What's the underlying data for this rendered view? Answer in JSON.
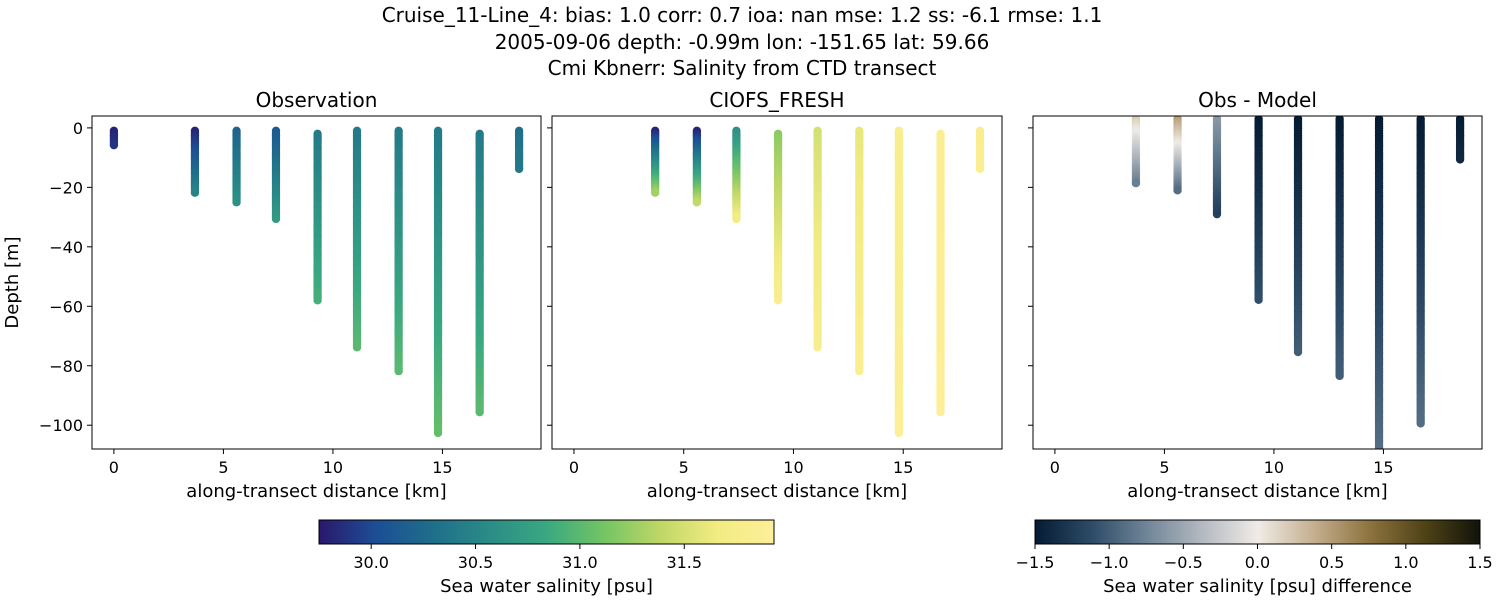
{
  "figure": {
    "title_lines": [
      "Cruise_11-Line_4: bias: 1.0  corr: 0.7  ioa: nan  mse: 1.2  ss: -6.1  rmse: 1.1",
      "2005-09-06 depth: -0.99m lon: -151.65 lat: 59.66",
      "Cmi Kbnerr: Salinity from CTD transect"
    ]
  },
  "chart_data": [
    {
      "type": "scatter",
      "title": "Observation",
      "xlabel": "along-transect distance [km]",
      "ylabel": "Depth [m]",
      "xlim": [
        -1,
        19.5
      ],
      "ylim": [
        -108,
        4
      ],
      "xticks": [
        0,
        5,
        10,
        15
      ],
      "yticks": [
        0,
        -20,
        -40,
        -60,
        -80,
        -100
      ],
      "colormap": "haline",
      "stations": [
        {
          "x": 0.0,
          "top": -1,
          "bottom": -6,
          "s_top": 29.8,
          "s_bottom": 29.9
        },
        {
          "x": 3.7,
          "top": -1,
          "bottom": -22,
          "s_top": 29.8,
          "s_bottom": 30.5
        },
        {
          "x": 5.6,
          "top": -1,
          "bottom": -25,
          "s_top": 30.2,
          "s_bottom": 30.6
        },
        {
          "x": 7.4,
          "top": -1,
          "bottom": -31,
          "s_top": 30.1,
          "s_bottom": 30.7
        },
        {
          "x": 9.3,
          "top": -2,
          "bottom": -58,
          "s_top": 30.4,
          "s_bottom": 30.9
        },
        {
          "x": 11.1,
          "top": -1,
          "bottom": -74,
          "s_top": 30.4,
          "s_bottom": 31.0
        },
        {
          "x": 13.0,
          "top": -1,
          "bottom": -82,
          "s_top": 30.4,
          "s_bottom": 31.0
        },
        {
          "x": 14.8,
          "top": -1,
          "bottom": -103,
          "s_top": 30.4,
          "s_bottom": 31.05
        },
        {
          "x": 16.7,
          "top": -2,
          "bottom": -96,
          "s_top": 30.4,
          "s_bottom": 31.0
        },
        {
          "x": 18.5,
          "top": -1,
          "bottom": -14,
          "s_top": 30.3,
          "s_bottom": 30.4
        }
      ]
    },
    {
      "type": "scatter",
      "title": "CIOFS_FRESH",
      "xlabel": "along-transect distance [km]",
      "ylabel": "",
      "xlim": [
        -1,
        19.5
      ],
      "ylim": [
        -108,
        4
      ],
      "xticks": [
        0,
        5,
        10,
        15
      ],
      "colormap": "haline",
      "stations": [
        {
          "x": 3.7,
          "top": -1,
          "bottom": -22,
          "s_top": 29.8,
          "s_bottom": 31.3
        },
        {
          "x": 5.6,
          "top": -1,
          "bottom": -25,
          "s_top": 29.8,
          "s_bottom": 31.4
        },
        {
          "x": 7.4,
          "top": -1,
          "bottom": -31,
          "s_top": 30.6,
          "s_bottom": 31.7
        },
        {
          "x": 9.3,
          "top": -2,
          "bottom": -58,
          "s_top": 31.2,
          "s_bottom": 31.8
        },
        {
          "x": 11.1,
          "top": -1,
          "bottom": -74,
          "s_top": 31.5,
          "s_bottom": 31.8
        },
        {
          "x": 13.0,
          "top": -1,
          "bottom": -82,
          "s_top": 31.6,
          "s_bottom": 31.85
        },
        {
          "x": 14.8,
          "top": -1,
          "bottom": -103,
          "s_top": 31.8,
          "s_bottom": 31.9
        },
        {
          "x": 16.7,
          "top": -2,
          "bottom": -96,
          "s_top": 31.85,
          "s_bottom": 31.9
        },
        {
          "x": 18.5,
          "top": -1,
          "bottom": -14,
          "s_top": 31.8,
          "s_bottom": 31.85
        }
      ]
    },
    {
      "type": "scatter",
      "title": "Obs - Model",
      "xlabel": "along-transect distance [km]",
      "ylabel": "",
      "xlim": [
        -1,
        19.5
      ],
      "ylim": [
        -108,
        4
      ],
      "xticks": [
        0,
        5,
        10,
        15
      ],
      "colormap": "diff",
      "stations": [
        {
          "x": 3.7,
          "top": 3,
          "bottom": -19,
          "s_top": 0.2,
          "s_bottom": -0.8
        },
        {
          "x": 5.6,
          "top": 3,
          "bottom": -21,
          "s_top": 0.5,
          "s_bottom": -0.9
        },
        {
          "x": 7.4,
          "top": 3,
          "bottom": -29,
          "s_top": -0.6,
          "s_bottom": -1.2
        },
        {
          "x": 9.3,
          "top": 3,
          "bottom": -58,
          "s_top": -1.5,
          "s_bottom": -1.1
        },
        {
          "x": 11.1,
          "top": 3,
          "bottom": -76,
          "s_top": -1.5,
          "s_bottom": -1.0
        },
        {
          "x": 13.0,
          "top": 3,
          "bottom": -84,
          "s_top": -1.5,
          "s_bottom": -1.0
        },
        {
          "x": 14.8,
          "top": 3,
          "bottom": -108,
          "s_top": -1.5,
          "s_bottom": -0.9
        },
        {
          "x": 16.7,
          "top": 3,
          "bottom": -100,
          "s_top": -1.5,
          "s_bottom": -0.9
        },
        {
          "x": 18.5,
          "top": 3,
          "bottom": -11,
          "s_top": -1.5,
          "s_bottom": -1.4
        }
      ]
    }
  ],
  "colorbars": [
    {
      "label": "Sea water salinity [psu]",
      "range": [
        29.75,
        31.93
      ],
      "ticks": [
        30.0,
        30.5,
        31.0,
        31.5
      ],
      "tick_labels": [
        "30.0",
        "30.5",
        "31.0",
        "31.5"
      ],
      "colors": [
        "#2a186c",
        "#1c4e95",
        "#1f6e8b",
        "#2b8c86",
        "#3aa881",
        "#73c464",
        "#bfd767",
        "#f2ec82",
        "#fdef9a"
      ]
    },
    {
      "label": "Sea water salinity [psu] difference",
      "range": [
        -1.5,
        1.5
      ],
      "ticks": [
        -1.5,
        -1.0,
        -0.5,
        0.0,
        0.5,
        1.0,
        1.5
      ],
      "tick_labels": [
        "−1.5",
        "−1.0",
        "−0.5",
        "0.0",
        "0.5",
        "1.0",
        "1.5"
      ],
      "colors": [
        "#051b33",
        "#2c4a66",
        "#6f8596",
        "#b3b9c0",
        "#f0ebe6",
        "#c5b090",
        "#8e7440",
        "#4f4316",
        "#11130a"
      ]
    }
  ]
}
